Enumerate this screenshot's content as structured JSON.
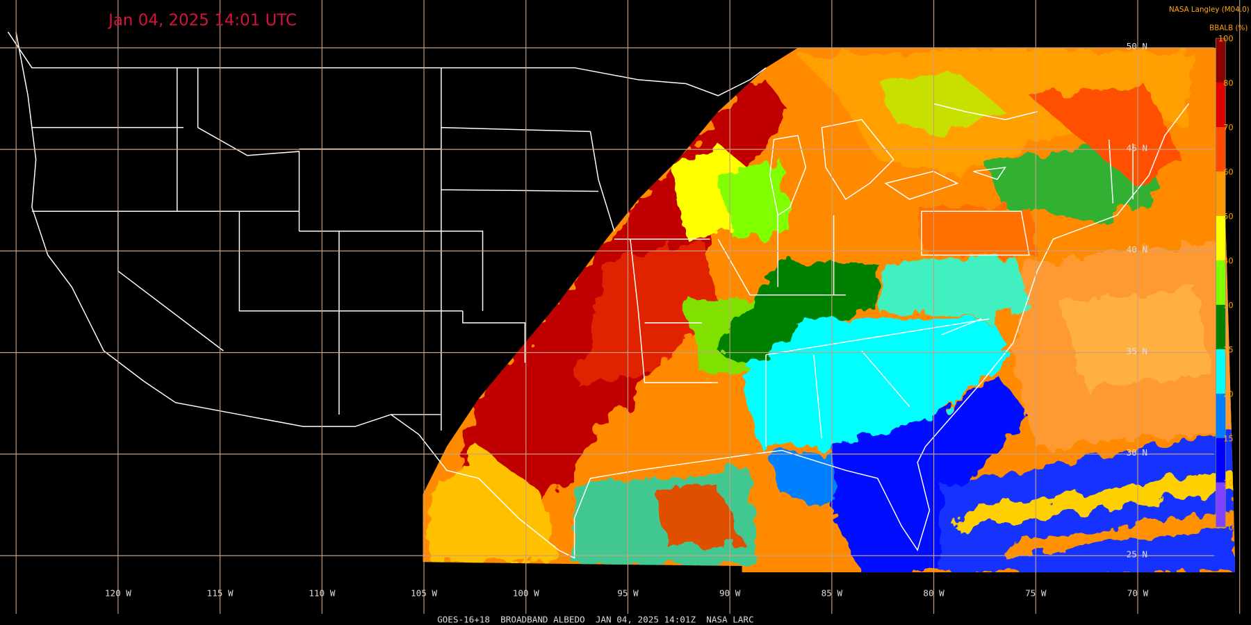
{
  "header": {
    "title": "Jan 04, 2025 14:01 UTC",
    "credit": "NASA Langley (M04.0)"
  },
  "colorbar": {
    "title": "BBALB (%)",
    "ticks": [
      100,
      80,
      70,
      60,
      50,
      40,
      30,
      25,
      20,
      15,
      10,
      0
    ],
    "colors": [
      "#8c0000",
      "#e00000",
      "#ff4a00",
      "#ff9a00",
      "#ffff00",
      "#80ff00",
      "#008000",
      "#00ffff",
      "#0080ff",
      "#0000ff",
      "#8040ff"
    ]
  },
  "grid": {
    "lat_labels": [
      "50 N",
      "45 N",
      "40 N",
      "35 N",
      "30 N",
      "25 N"
    ],
    "lon_labels": [
      "120 W",
      "115 W",
      "110 W",
      "105 W",
      "100 W",
      "95 W",
      "90 W",
      "85 W",
      "80 W",
      "75 W",
      "70 W"
    ]
  },
  "footer": {
    "caption": "GOES-16+18  BROADBAND ALBEDO  JAN 04, 2025 14:01Z  NASA LARC"
  }
}
